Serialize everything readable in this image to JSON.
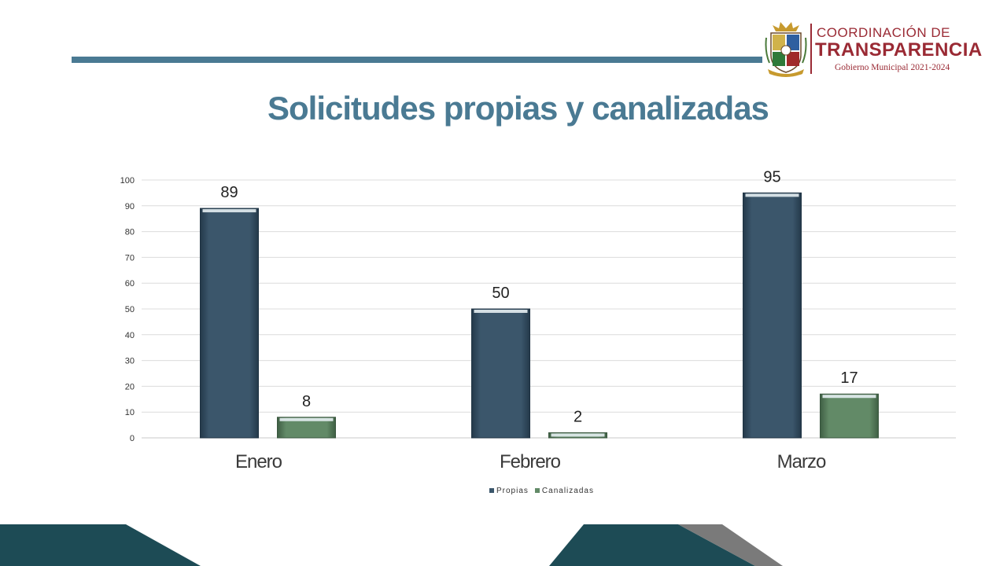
{
  "header": {
    "logo": {
      "line1": "COORDINACIÓN DE",
      "line2": "TRANSPARENCIA",
      "line3": "Gobierno Municipal 2021-2024",
      "color": "#9a2a34"
    }
  },
  "title": "Solicitudes propias y canalizadas",
  "colors": {
    "accent": "#4a7a93",
    "propias": "#3b566b",
    "canalizadas": "#628a67",
    "footer_dark": "#1d4b55",
    "footer_gray": "#7a7a7a"
  },
  "chart_data": {
    "type": "bar",
    "categories": [
      "Enero",
      "Febrero",
      "Marzo"
    ],
    "series": [
      {
        "name": "Propias",
        "values": [
          89,
          50,
          95
        ],
        "color": "#3b566b"
      },
      {
        "name": "Canalizadas",
        "values": [
          8,
          2,
          17
        ],
        "color": "#628a67"
      }
    ],
    "ylim": [
      0,
      100
    ],
    "yticks": [
      0,
      10,
      20,
      30,
      40,
      50,
      60,
      70,
      80,
      90,
      100
    ],
    "grid": true,
    "legend": "bottom-center",
    "data_labels": true
  }
}
